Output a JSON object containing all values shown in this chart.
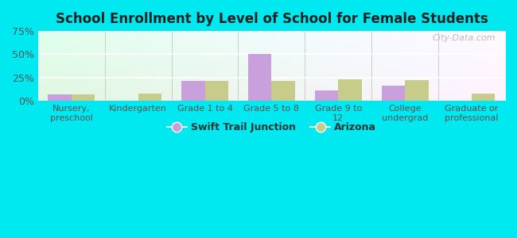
{
  "title": "School Enrollment by Level of School for Female Students",
  "categories": [
    "Nursery,\npreschool",
    "Kindergarten",
    "Grade 1 to 4",
    "Grade 5 to 8",
    "Grade 9 to\n12",
    "College\nundergrad",
    "Graduate or\nprofessional"
  ],
  "swift_trail": [
    7,
    0,
    21,
    50,
    11,
    16,
    0
  ],
  "arizona": [
    7,
    8,
    21,
    21,
    23,
    22,
    8
  ],
  "swift_trail_color": "#c9a0dc",
  "arizona_color": "#c8cc8a",
  "ylim": [
    0,
    75
  ],
  "yticks": [
    0,
    25,
    50,
    75
  ],
  "ytick_labels": [
    "0%",
    "25%",
    "50%",
    "75%"
  ],
  "legend_labels": [
    "Swift Trail Junction",
    "Arizona"
  ],
  "background_outer": "#00e8f0",
  "watermark": "City-Data.com",
  "bar_width": 0.35,
  "title_color": "#222222",
  "tick_color": "#555555",
  "grid_color": "#ffffff"
}
